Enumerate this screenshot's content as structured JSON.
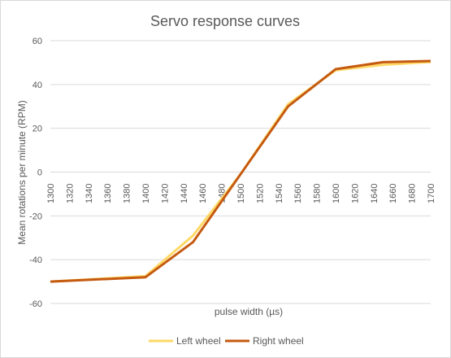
{
  "chart_data": {
    "type": "line",
    "title": "Servo response curves",
    "xlabel": "pulse width (µs)",
    "ylabel": "Mean rotations per minute (RPM)",
    "categories": [
      "1300",
      "1320",
      "1340",
      "1360",
      "1380",
      "1400",
      "1420",
      "1440",
      "1460",
      "1480",
      "1500",
      "1520",
      "1540",
      "1560",
      "1580",
      "1600",
      "1620",
      "1640",
      "1660",
      "1680",
      "1700"
    ],
    "x_values": [
      1300,
      1400,
      1450,
      1500,
      1550,
      1600,
      1650,
      1700
    ],
    "ylim": [
      -60,
      60
    ],
    "yticks": [
      -60,
      -40,
      -20,
      0,
      20,
      40,
      60
    ],
    "grid": "horizontal",
    "legend": "bottom",
    "series": [
      {
        "name": "Left wheel",
        "color": "#FFD966",
        "values": [
          -50,
          -47.5,
          -29,
          -1,
          31,
          46.5,
          49,
          50.3
        ]
      },
      {
        "name": "Right wheel",
        "color": "#C55A11",
        "values": [
          -50,
          -48,
          -32,
          -1,
          30,
          47,
          50.2,
          50.7
        ]
      }
    ]
  }
}
